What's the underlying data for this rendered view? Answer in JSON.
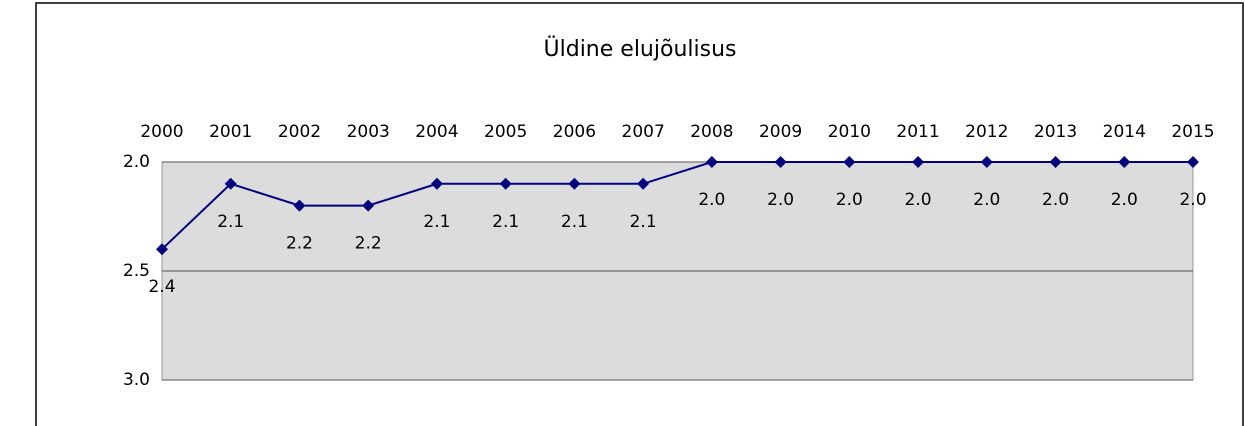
{
  "chart_data": {
    "type": "line",
    "title": "Üldine elujõulisus",
    "categories": [
      "2000",
      "2001",
      "2002",
      "2003",
      "2004",
      "2005",
      "2006",
      "2007",
      "2008",
      "2009",
      "2010",
      "2011",
      "2012",
      "2013",
      "2014",
      "2015"
    ],
    "values": [
      2.4,
      2.1,
      2.2,
      2.2,
      2.1,
      2.1,
      2.1,
      2.1,
      2.0,
      2.0,
      2.0,
      2.0,
      2.0,
      2.0,
      2.0,
      2.0
    ],
    "value_labels": [
      "2.4",
      "2.1",
      "2.2",
      "2.2",
      "2.1",
      "2.1",
      "2.1",
      "2.1",
      "2.0",
      "2.0",
      "2.0",
      "2.0",
      "2.0",
      "2.0",
      "2.0",
      "2.0"
    ],
    "color": "#000080",
    "ylim": [
      2,
      3
    ],
    "y_inverted": true,
    "yticks": [
      {
        "value": 2,
        "label": "2.0"
      },
      2.5,
      {
        "value": 3,
        "label": "3.0"
      }
    ],
    "grid": true,
    "x_axis_position": "top"
  }
}
